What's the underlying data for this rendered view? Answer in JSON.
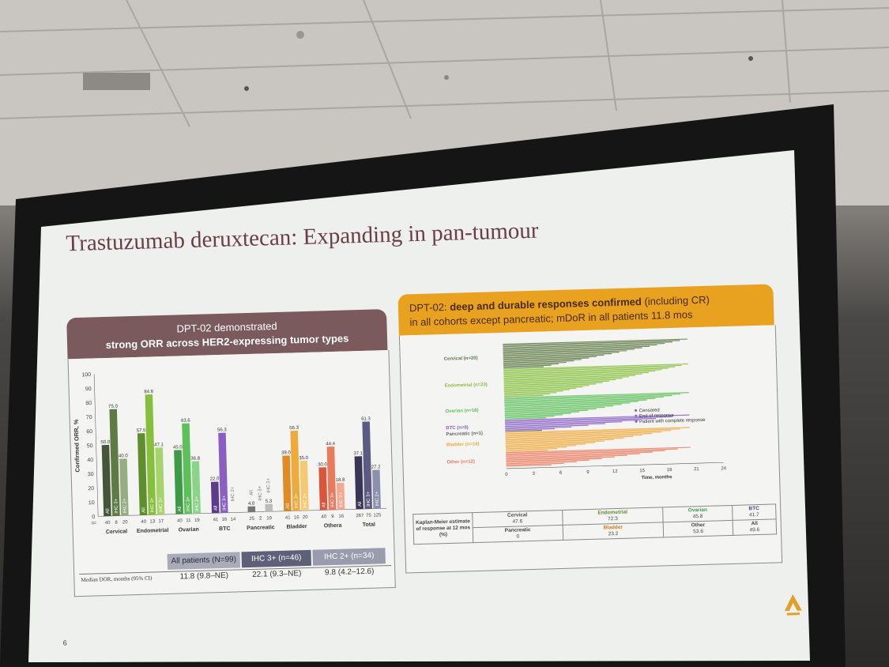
{
  "slide": {
    "title": "Trastuzumab deruxtecan: Expanding in pan-tumour",
    "page_number": "6"
  },
  "left_panel": {
    "header_line1": "DPT-02 demonstrated",
    "header_line2": "strong ORR across HER2-expressing tumor types",
    "y_axis_label": "Confirmed ORR, %",
    "n_label": "n=",
    "dor_label": "Median DOR, months (95% CI)",
    "dor_header": [
      "All patients (N=99)",
      "IHC 3+ (n=46)",
      "IHC 2+ (n=34)"
    ],
    "dor_values": [
      "11.8 (9.8–NE)",
      "22.1 (9.3–NE)",
      "9.8 (4.2–12.6)"
    ]
  },
  "chart_data": {
    "type": "bar",
    "ylabel": "Confirmed ORR, %",
    "ylim": [
      0,
      100
    ],
    "yticks": [
      0,
      10,
      20,
      30,
      40,
      50,
      60,
      70,
      80,
      90,
      100
    ],
    "bar_labels": [
      "All",
      "IHC 3+",
      "IHC 2+"
    ],
    "categories": [
      "Cervical",
      "Endometrial",
      "Ovarian",
      "BTC",
      "Pancreatic",
      "Bladder",
      "Other",
      "Total"
    ],
    "groups": [
      {
        "category": "Cervical",
        "values": [
          50.0,
          75.0,
          40.0
        ],
        "labels": [
          "50.0",
          "75.0",
          "40.0"
        ],
        "n": [
          "40",
          "8",
          "20"
        ]
      },
      {
        "category": "Endometrial",
        "values": [
          57.5,
          84.6,
          47.1
        ],
        "labels": [
          "57.5",
          "84.6",
          "47.1"
        ],
        "n": [
          "40",
          "13",
          "17"
        ]
      },
      {
        "category": "Ovarian",
        "values": [
          45.0,
          63.6,
          36.8
        ],
        "labels": [
          "45.0",
          "63.6",
          "36.8"
        ],
        "n": [
          "40",
          "11",
          "19"
        ]
      },
      {
        "category": "BTC",
        "values": [
          22.0,
          56.3,
          0
        ],
        "labels": [
          "22.0",
          "56.3",
          ""
        ],
        "n": [
          "41",
          "16",
          "14"
        ]
      },
      {
        "category": "Pancreatic",
        "values": [
          4.0,
          0,
          5.3
        ],
        "labels": [
          "4.0",
          "0",
          "5.3"
        ],
        "n": [
          "25",
          "2",
          "19"
        ]
      },
      {
        "category": "Bladder",
        "values": [
          39.0,
          56.3,
          35.0
        ],
        "labels": [
          "39.0",
          "56.3",
          "35.0"
        ],
        "n": [
          "41",
          "16",
          "20"
        ]
      },
      {
        "category": "Other",
        "values": [
          30.0,
          44.4,
          18.8
        ],
        "labels": [
          "30.0",
          "44.4",
          "18.8"
        ],
        "n": [
          "40",
          "9",
          "16"
        ],
        "superscript": "a"
      },
      {
        "category": "Total",
        "values": [
          37.1,
          61.3,
          27.2
        ],
        "labels": [
          "37.1",
          "61.3",
          "27.2"
        ],
        "n": [
          "267",
          "75",
          "125"
        ]
      }
    ],
    "colors": {
      "Cervical": [
        "#44553a",
        "#5e7a45",
        "#94ad82"
      ],
      "Endometrial": [
        "#5f8e2e",
        "#86bf3c",
        "#a7d36b"
      ],
      "Ovarian": [
        "#3f9a48",
        "#5dc05a",
        "#8ad488"
      ],
      "BTC": [
        "#5a3b8c",
        "#8a5fc4",
        "#b59ad8"
      ],
      "Pancreatic": [
        "#777777",
        "#999999",
        "#bbbbbb"
      ],
      "Bladder": [
        "#e08b25",
        "#efaa3c",
        "#f5c873"
      ],
      "Other": [
        "#d8563b",
        "#ea7a5e",
        "#f2a992"
      ],
      "Total": [
        "#3a3456",
        "#5c5a80",
        "#8d8fae"
      ]
    }
  },
  "right_panel": {
    "header_line1_prefix": "DPT-02: ",
    "header_line1_bold": "deep and durable responses confirmed",
    "header_line1_suffix": " (including CR)",
    "header_line2": "in all cohorts except pancreatic;  mDoR in all patients 11.8 mos",
    "swimmer_groups": [
      {
        "label": "Cervical (n=20)",
        "color": "#5e7a45"
      },
      {
        "label": "Endometrial (n=23)",
        "color": "#86bf3c"
      },
      {
        "label": "Ovarian (n=18)",
        "color": "#5dc05a"
      },
      {
        "label": "BTC (n=9)",
        "color": "#8a5fc4"
      },
      {
        "label": "Pancreatic (n=1)",
        "color": "#666666"
      },
      {
        "label": "Bladder (n=16)",
        "color": "#efaa3c"
      },
      {
        "label": "Other (n=12)",
        "color": "#ea7a5e"
      }
    ],
    "legend": [
      "Censored",
      "End of response",
      "Patient with complete response"
    ],
    "x_ticks": [
      "0",
      "3",
      "6",
      "9",
      "12",
      "15",
      "18",
      "21",
      "24"
    ],
    "x_label": "Time, months",
    "km_label": "Kaplan-Meier estimate of response at 12 mos (%)",
    "km_table": [
      [
        {
          "name": "Cervical",
          "value": "47.6",
          "color": "#44553a"
        },
        {
          "name": "Endometrial",
          "value": "72.3",
          "color": "#5f8e2e"
        },
        {
          "name": "Ovarian",
          "value": "45.8",
          "color": "#3f9a48"
        },
        {
          "name": "BTC",
          "value": "41.7",
          "color": "#5a3b8c"
        }
      ],
      [
        {
          "name": "Pancreatic",
          "value": "0",
          "color": "#555555"
        },
        {
          "name": "Bladder",
          "value": "23.2",
          "color": "#d07a1a"
        },
        {
          "name": "Other",
          "value": "53.6",
          "color": "#555555"
        },
        {
          "name": "All",
          "value": "49.6",
          "color": "#333333"
        }
      ]
    ]
  }
}
